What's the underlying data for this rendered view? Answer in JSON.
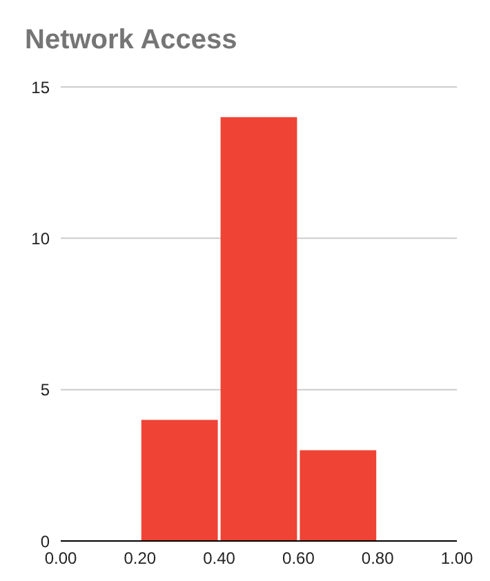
{
  "chart_data": {
    "type": "histogram",
    "title": "Network Access",
    "bins": [
      0,
      0.2,
      0.4,
      0.6,
      0.8,
      1.0
    ],
    "values": [
      0,
      4,
      14,
      3,
      0
    ],
    "color": "#ee4335",
    "xlim": [
      0,
      1
    ],
    "xticks": [
      {
        "value": 0,
        "label": "0.00"
      },
      {
        "value": 0.2,
        "label": "0.20"
      },
      {
        "value": 0.4,
        "label": "0.40"
      },
      {
        "value": 0.6,
        "label": "0.60"
      },
      {
        "value": 0.8,
        "label": "0.80"
      },
      {
        "value": 1,
        "label": "1.00"
      }
    ],
    "ylim": [
      0,
      15
    ],
    "yticks": [
      0,
      5,
      10,
      15
    ],
    "grid": "y"
  }
}
